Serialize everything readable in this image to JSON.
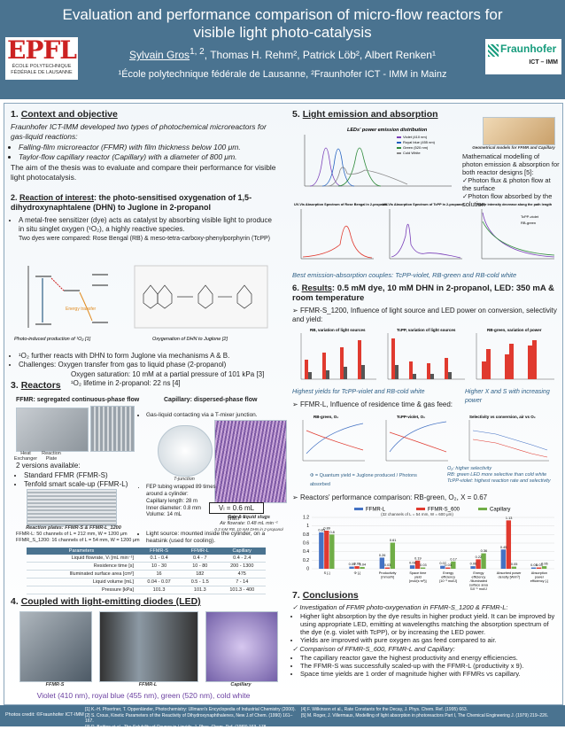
{
  "header": {
    "title": "Evaluation and performance comparison of micro-flow reactors for visible light photo-catalysis",
    "authors_lead": "Sylvain Gros",
    "authors_lead_sup": "1, 2",
    "authors_rest": ", Thomas H. Rehm², Patrick Löb², Albert Renken¹",
    "affiliations": "¹École polytechnique fédérale de Lausanne, ²Fraunhofer ICT - IMM in Mainz",
    "epfl_mark": "EPFL",
    "epfl_line1": "ÉCOLE POLYTECHNIQUE",
    "epfl_line2": "FÉDÉRALE DE LAUSANNE",
    "fh_name": "Fraunhofer",
    "fh_sub": "ICT – IMM"
  },
  "s1": {
    "num": "1.",
    "title": "Context and objective",
    "p1": "Fraunhofer ICT-IMM developed two types of photochemical microreactors for gas-liquid reactions:",
    "b1": "Falling-film microreactor (FFMR) with film thickness below 100 μm.",
    "b2": "Taylor-flow capillary reactor (Capillary) with a diameter of 800 μm.",
    "p2": "The aim of the thesis was to evaluate and compare their performance for visible light photocatalysis."
  },
  "s2": {
    "num": "2.",
    "title": "Reaction of interest",
    "title_rest": ": the photo-sensitised oxygenation of 1,5-dihydroxynaphtalene (DHN) to Juglone in 2-propanol",
    "b1": "A metal-free sensitizer (dye) acts as catalyst by absorbing visible light to produce in situ singlet oxygen (¹O₂), a highly reactive species.",
    "b1_sub": "Two dyes were compared: Rose Bengal (RB) & meso-tetra-carboxy-phenylporphyrin (TcPP)",
    "cap1": "Photo-induced production of ¹O₂ [1]",
    "cap2": "Oxygenation of DHN to Juglone [2]",
    "energy": "Energy transfer",
    "b2": "¹O₂ further reacts with DHN to form Juglone via mechanisms A & B.",
    "b3": "Challenges: Oxygen transfer from gas to liquid phase (2-propanol)",
    "b3a": "Oxygen saturation: 10 mM at a partial pressure of 101 kPa [3]",
    "b3b": "¹O₂ lifetime in 2-propanol: 22 ns [4]"
  },
  "s3": {
    "num": "3.",
    "title": "Reactors",
    "ffmr_head": "FFMR: segregated continuous-phase flow",
    "cap_head": "Capillary: dispersed-phase flow",
    "heat": "Heat Exchanger",
    "reaction_plate": "Reaction Plate",
    "versions": "2 versions available:",
    "v1": "Standard FFMR (FFMR-S)",
    "v2": "Tenfold smart scale-up (FFMR-L)",
    "plates_cap": "Reaction plates: FFMR-S & FFMR-L_1200",
    "ffmr_l": "FFMR-L: 50 channels of L = 212 mm, W = 1200 μm",
    "ffmr_s": "FFMR_S_1200: 16 channels of L = 54 mm, W = 1200 μm",
    "cb1": "Gas-liquid contacting via a T-mixer junction.",
    "tjunction": "T-junction",
    "cb2": "FEP tubing wrapped 89 times around a cylinder:",
    "cb2a": "Capillary length: 28 m",
    "cb2b": "Inner diameter: 0.8 mm",
    "cb2c": "Volume: 14 mL",
    "vol_eq": "Vₗ = 0.6 mL min⁻¹",
    "slug_head": "Gas & liquid slugs",
    "slug_1": "Air flowrate: 0.48 mL min⁻¹",
    "slug_2": "0.3 mM RB, 10 mM DHN in 2-propanol",
    "cb3": "Light source: mounted inside the cylinder, on a heatsink (used for cooling).",
    "table": {
      "headers": [
        "Parameters",
        "FFMR-S",
        "FFMR-L",
        "Capillary"
      ],
      "rows": [
        [
          "Liquid flowrate, Vₗ [mL min⁻¹]",
          "0.1 - 0.4",
          "0.4 - 7",
          "0.4 - 2.4"
        ],
        [
          "Residence time [s]",
          "10 - 30",
          "10 - 80",
          "200 - 1300"
        ],
        [
          "Illuminated surface area [cm²]",
          "16",
          "182",
          "475"
        ],
        [
          "Liquid volume [mL]",
          "0.04 - 0.07",
          "0.5 - 1.5",
          "7 - 14"
        ],
        [
          "Pressure [kPa]",
          "101.3",
          "101.3",
          "101.3 - 400"
        ]
      ]
    }
  },
  "s4": {
    "num": "4.",
    "title": "Coupled with light-emitting diodes (LED)",
    "labels": [
      "FFMR-S",
      "FFMR-L",
      "Capillary"
    ],
    "led_line": "Violet (410 nm), royal blue (455 nm), green (520 nm), cold white"
  },
  "s5": {
    "num": "5.",
    "title": "Light emission and absorption",
    "led_chart_title": "LEDs' power emission distribution",
    "led_legend": [
      "Violet (410 nm)",
      "Royal blue (455 nm)",
      "Green (520 nm)",
      "Cold White"
    ],
    "geo_cap": "Geometrical models for FFMR and Capillary",
    "p1": "Mathematical modelling of photon emission & absorption for both reactor designs [5]:",
    "c1": "Photon flux & photon flow at the surface",
    "c2": "Photon flow absorbed by the solution",
    "spec1_title": "UV-Vis Absorption Spectrum of Rose Bengal in 2-propanol",
    "spec2_title": "UV-Vis Absorption Spectrum of TcPP in 2-propanol",
    "decay_title": "Power intensity decrease along the path length",
    "decay_legend": [
      "TcPP-violet",
      "RB-green"
    ],
    "best": "Best emission-absorption couples: TcPP-violet, RB-green and RB-cold white"
  },
  "s6": {
    "num": "6.",
    "title": "Results",
    "title_rest": ": 0.5 mM dye, 10 mM DHN in 2-propanol, LED: 350 mA & room temperature",
    "b1": "FFMR-S_1200, Influence of light source and LED power on conversion, selectivity and yield:",
    "ch1": "RB, variation of light sources",
    "ch2": "TcPP, variation of light sources",
    "ch3": "RB-green, variation of power",
    "note1": "Highest yields for TcPP-violet and RB-cold white",
    "note2": "Higher X and S with increasing power",
    "b2": "FFMR-L, Influence of residence time & gas feed:",
    "ch4": "RB-green, O₂",
    "ch5": "TcPP-violet, O₂",
    "ch6": "Selectivity vs conversion, air vs O₂",
    "phi_eq": "Φ = Quantum yield = Juglone produced / Photons absorbed",
    "o2_notes": "O₂: higher selectivity\nRB: green LED more selective than cold white\nTcPP-violet: highest reaction rate and selectivity",
    "b3": "Reactors' performance comparison: RB-green, O₂, X = 0.67",
    "perf_note": "(32 channels of L = 54 mm, W = 600 μm)"
  },
  "s7": {
    "num": "7.",
    "title": "Conclusions",
    "c1": "Investigation of FFMR photo-oxygenation in FFMR-S_1200 & FFMR-L:",
    "b1": "Higher light absorption by the dye results in higher product yield. It can be improved by using appropriate LED, emitting at wavelengths matching the absorption spectrum of the dye (e.g. violet with TcPP), or by increasing the LED power.",
    "b2": "Yields are improved with pure oxygen as gas feed compared to air.",
    "c2": "Comparison of FFMR-S_600, FFMR-L and Capillary:",
    "b3": "The capillary reactor gave the highest productivity and energy efficiencies.",
    "b4": "The FFMR-S was successfully scaled-up with the FFMR-L (productivity x 9).",
    "b5": "Space time yields are 1 order of magnitude higher with FFMRs vs capillary."
  },
  "footer": {
    "credit": "Photos credit: ©Fraunhofer ICT-IMM",
    "refs": [
      "[1] K.-H. Pfoertner, T. Oppenländer, Photochemistry: Ullmann's Encyclopedia of Industrial Chemistry (2000).",
      "[2] S. Croux, Kinetic Parameters of the Reactivity of Dihydroxynaphthalenes, New J.of Chem. (1990) 161–167.",
      "[3] R. Battino et al., The Solubility of Oxygen in Liquids, J. Phys. Chem. Ref. (1983) 163–178.",
      "[4] F. Wilkinson et al., Rate Constants for the Decay, J. Phys. Chem. Ref. (1995) 663.",
      "[5] M. Roger, J. Villermaux, Modelling of light absorption in photoreactors Part I, The Chemical Engineering J. (1979) 219–226."
    ]
  },
  "colors": {
    "header": "#4a7390",
    "ffmr_l": "#4472c4",
    "ffmr_s": "#e03a2f",
    "capillary": "#70ad47",
    "accent_violet": "#7a3fb8",
    "accent_blue": "#1f5fbf",
    "accent_green": "#2e8b3a"
  },
  "chart_data": {
    "type": "bar",
    "title": "Reactors' performance comparison: RB-green, O₂, X = 0.67",
    "categories": [
      "S [-]",
      "Φ [-]",
      "Productivity [mmol/h]",
      "Space time yield [mol/(s·m³)]",
      "Energy efficiency [10⁻³ mol/J]",
      "Energy efficiency /Illuminated surface area [10⁻⁵ mol/J m²]",
      "Absorbed power density [W/m³]",
      "Absorption power efficiency [-]"
    ],
    "series": [
      {
        "name": "FFMR-L",
        "values": [
          0.85,
          0.05,
          0.26,
          0.08,
          0.07,
          0.06,
          0.45,
          0.03
        ]
      },
      {
        "name": "FFMR-S_600",
        "values": [
          0.89,
          0.06,
          0.03,
          0.19,
          0.03,
          0.22,
          1.13,
          0.03
        ]
      },
      {
        "name": "Capillary",
        "values": [
          0.8,
          0.04,
          0.61,
          0.03,
          0.17,
          0.36,
          0.05,
          0.06
        ]
      }
    ],
    "ylim": [
      0,
      1.2
    ],
    "yticks": [
      "0",
      "0.2",
      "0.4",
      "0.6",
      "0.8",
      "1",
      "1.2"
    ],
    "legend": "top"
  }
}
